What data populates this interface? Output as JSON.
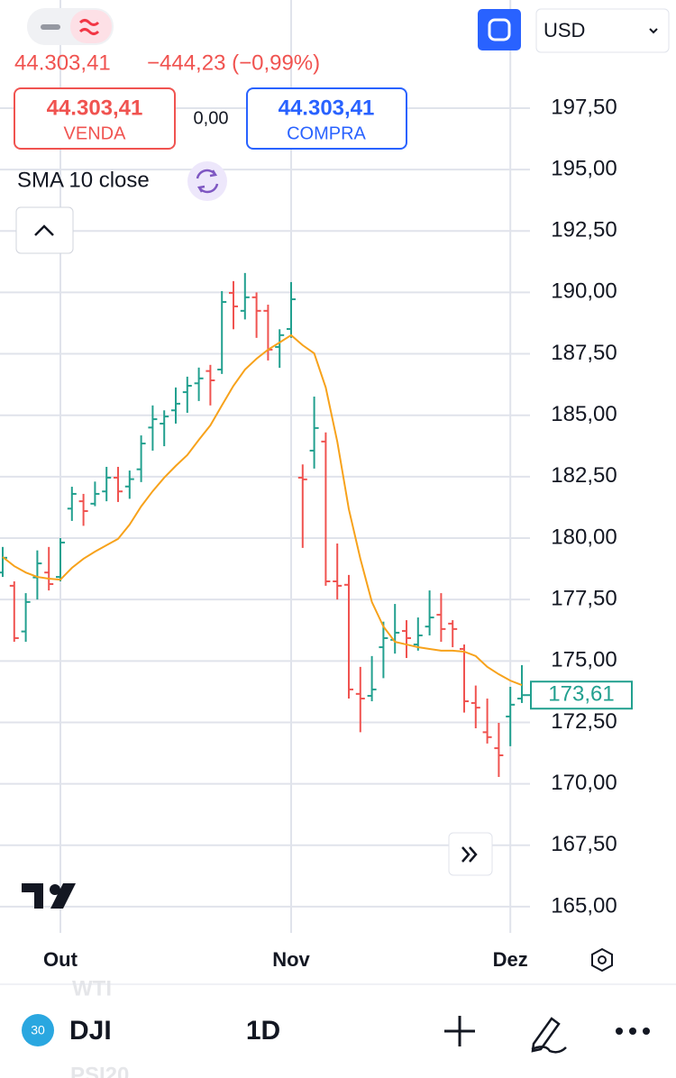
{
  "header": {
    "price": "44.303,41",
    "change": "−444,23 (−0,99%)",
    "sell": {
      "price": "44.303,41",
      "label": "VENDA"
    },
    "spread": "0,00",
    "buy": {
      "price": "44.303,41",
      "label": "COMPRA"
    },
    "currency": "USD"
  },
  "chart_data": {
    "type": "candlestick",
    "categories": [
      null,
      null,
      null,
      null,
      null,
      "Out",
      null,
      null,
      null,
      null,
      null,
      null,
      null,
      null,
      null,
      null,
      null,
      null,
      null,
      null,
      null,
      null,
      null,
      null,
      null,
      "Nov",
      null,
      null,
      null,
      null,
      null,
      null,
      null,
      null,
      null,
      null,
      null,
      null,
      null,
      null,
      null,
      null,
      null,
      null,
      "Dez",
      null
    ],
    "open": [
      178.6,
      178.06,
      176.2,
      178.4,
      178.6,
      178.42,
      181.2,
      181.5,
      181.4,
      181.9,
      182.46,
      182.1,
      182.8,
      184.5,
      184.66,
      185.2,
      185.94,
      186.3,
      186.8,
      186.86,
      189.98,
      189.25,
      189.8,
      189.25,
      187.78,
      188.51,
      182.46,
      183.56,
      183.93,
      178.24,
      178.1,
      173.66,
      173.58,
      175.56,
      175.86,
      176.22,
      175.67,
      176.4,
      176.88,
      176.52,
      175.49,
      173.29,
      172.1,
      171.45,
      172.74,
      173.47
    ],
    "high": [
      179.64,
      178.24,
      177.76,
      179.5,
      179.64,
      180.0,
      182.09,
      181.8,
      182.3,
      182.9,
      182.9,
      182.75,
      184.18,
      185.4,
      185.2,
      186.13,
      186.57,
      186.94,
      187.05,
      190.05,
      190.46,
      190.79,
      190.0,
      189.5,
      188.5,
      190.42,
      183.0,
      185.76,
      184.3,
      179.78,
      178.5,
      174.76,
      175.2,
      176.6,
      177.32,
      176.66,
      176.77,
      177.87,
      177.76,
      176.66,
      175.67,
      174.0,
      173.47,
      172.48,
      173.95,
      174.83
    ],
    "low": [
      178.42,
      175.78,
      175.78,
      177.5,
      177.87,
      178.24,
      180.7,
      180.5,
      181.3,
      181.5,
      181.47,
      181.6,
      182.28,
      183.56,
      183.74,
      184.66,
      185.1,
      185.58,
      185.4,
      186.68,
      188.5,
      188.9,
      188.15,
      187.23,
      186.93,
      188.15,
      179.6,
      182.83,
      178.06,
      177.5,
      173.47,
      172.1,
      173.36,
      174.3,
      175.3,
      175.12,
      175.42,
      176.04,
      175.78,
      175.56,
      172.9,
      172.26,
      171.64,
      170.28,
      171.53,
      173.29
    ],
    "close": [
      179.2,
      175.93,
      177.4,
      178.97,
      178.13,
      179.82,
      181.8,
      181.1,
      181.8,
      182.46,
      181.9,
      182.4,
      183.85,
      184.84,
      184.95,
      185.47,
      186.2,
      186.5,
      186.42,
      189.61,
      189.43,
      189.8,
      189.25,
      187.67,
      188.26,
      189.72,
      182.39,
      184.48,
      178.24,
      178.06,
      173.84,
      173.47,
      173.84,
      175.93,
      176.15,
      175.93,
      176.04,
      176.77,
      176.3,
      176.3,
      173.36,
      173.1,
      171.9,
      171.16,
      173.22,
      173.61
    ],
    "up_color": "#22a08f",
    "down_color": "#f05350",
    "sma": {
      "name": "SMA 10 close",
      "color": "#f7a21b",
      "values": [
        179.23,
        178.86,
        178.6,
        178.42,
        178.35,
        178.31,
        178.79,
        179.16,
        179.45,
        179.71,
        179.97,
        180.55,
        181.29,
        181.91,
        182.46,
        182.94,
        183.38,
        184.0,
        184.59,
        185.4,
        186.2,
        186.86,
        187.3,
        187.67,
        187.96,
        188.26,
        187.85,
        187.52,
        186.13,
        183.93,
        181.18,
        179.16,
        177.4,
        176.4,
        175.78,
        175.67,
        175.56,
        175.49,
        175.42,
        175.42,
        175.38,
        175.2,
        174.76,
        174.46,
        174.2,
        174.02
      ]
    },
    "last_price": 173.61,
    "last_price_label": "173,61",
    "ylim": [
      163.75,
      201.9
    ],
    "yticks": [
      {
        "value": 165,
        "label": "165,00"
      },
      {
        "value": 167.5,
        "label": "167,50"
      },
      {
        "value": 170,
        "label": "170,00"
      },
      {
        "value": 172.5,
        "label": "172,50"
      },
      {
        "value": 175,
        "label": "175,00"
      },
      {
        "value": 177.5,
        "label": "177,50"
      },
      {
        "value": 180,
        "label": "180,00"
      },
      {
        "value": 182.5,
        "label": "182,50"
      },
      {
        "value": 185,
        "label": "185,00"
      },
      {
        "value": 187.5,
        "label": "187,50"
      },
      {
        "value": 190,
        "label": "190,00"
      },
      {
        "value": 192.5,
        "label": "192,50"
      },
      {
        "value": 195,
        "label": "195,00"
      },
      {
        "value": 197.5,
        "label": "197,50"
      }
    ],
    "grid": true
  },
  "footer": {
    "badge": "30",
    "symbol": "DJI",
    "interval": "1D",
    "watch_above": "WTI",
    "watch_below": "PSI20"
  }
}
